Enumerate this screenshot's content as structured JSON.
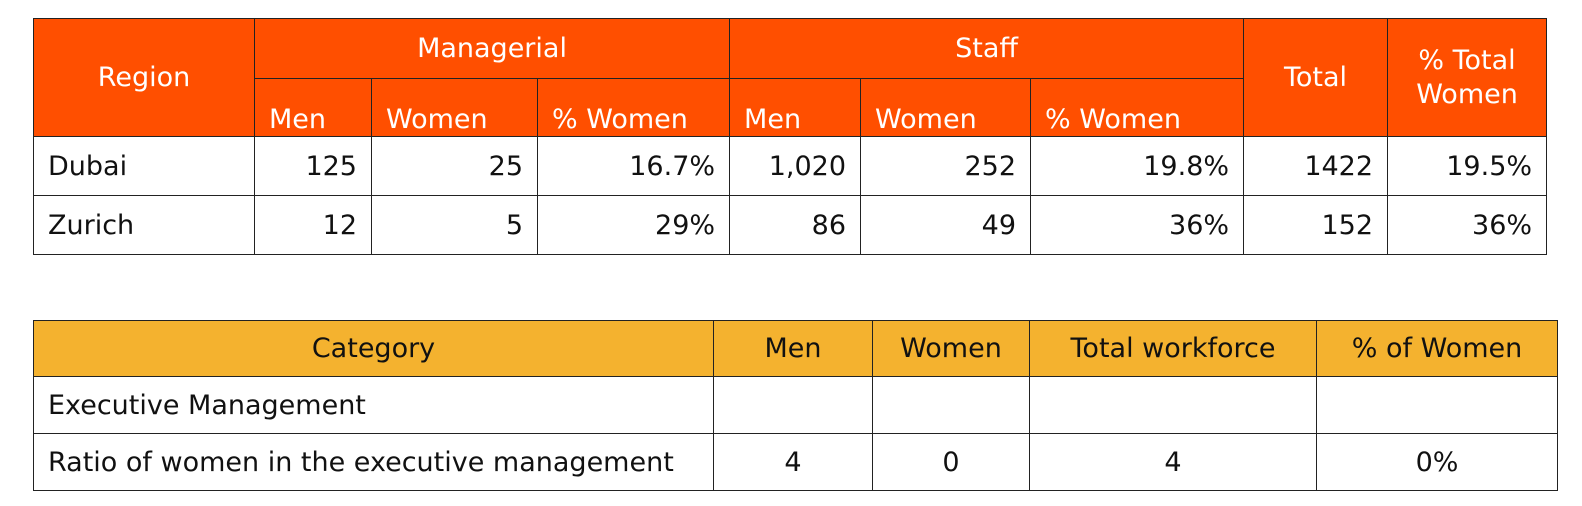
{
  "workforce_table": {
    "header": {
      "region": "Region",
      "managerial": "Managerial",
      "staff": "Staff",
      "total": "Total",
      "pct_total_women_line1": "% Total",
      "pct_total_women_line2": "Women",
      "men": "Men",
      "women": "Women",
      "pct_women": "% Women"
    },
    "rows": [
      {
        "region": "Dubai",
        "mgr_men": "125",
        "mgr_women": "25",
        "mgr_pct": "16.7%",
        "staff_men": "1,020",
        "staff_women": "252",
        "staff_pct": "19.8%",
        "total": "1422",
        "pct_total_women": "19.5%"
      },
      {
        "region": "Zurich",
        "mgr_men": "12",
        "mgr_women": "5",
        "mgr_pct": "29%",
        "staff_men": "86",
        "staff_women": "49",
        "staff_pct": "36%",
        "total": "152",
        "pct_total_women": "36%"
      }
    ]
  },
  "executive_table": {
    "header": {
      "category": "Category",
      "men": "Men",
      "women": "Women",
      "total_workforce": "Total workforce",
      "pct_women": "% of Women"
    },
    "rows": [
      {
        "category": "Executive Management",
        "men": "",
        "women": "",
        "total": "",
        "pct": ""
      },
      {
        "category": "Ratio of women in the executive management",
        "men": "4",
        "women": "0",
        "total": "4",
        "pct": "0%"
      }
    ]
  },
  "colors": {
    "orange_header": "#FF4F00",
    "yellow_header": "#F4B22F"
  }
}
